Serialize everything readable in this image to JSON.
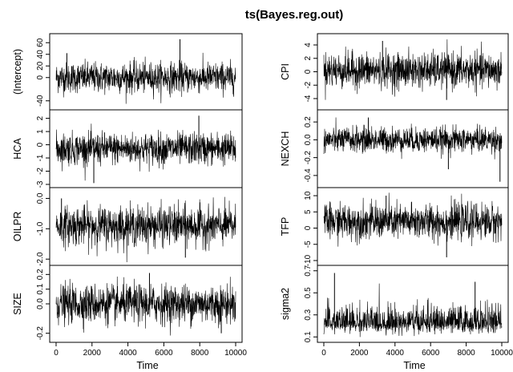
{
  "chart_data": {
    "type": "line",
    "title": "ts(Bayes.reg.out)",
    "xlabel": "Time",
    "x_range": [
      1,
      10000
    ],
    "x_ticks": [
      0,
      2000,
      4000,
      6000,
      8000,
      10000
    ],
    "x_tick_labels": [
      "0",
      "2000",
      "4000",
      "6000",
      "8000",
      "10000"
    ],
    "series": [
      {
        "name": "(Intercept)",
        "column": 0,
        "ylim": [
          -50,
          70
        ],
        "y_ticks": [
          -40,
          0,
          20,
          40,
          60
        ],
        "y_tick_labels": [
          "-40",
          "0",
          "20",
          "40",
          "60"
        ],
        "mean": 0,
        "sd": 13,
        "spikes": [
          {
            "x": 6900,
            "y": 66
          },
          {
            "x": 600,
            "y": 42
          }
        ],
        "values": "trace plot of 10000 MCMC draws, fluctuating around 0, mostly between -40 and 40"
      },
      {
        "name": "HCA",
        "column": 0,
        "ylim": [
          -3,
          2.4
        ],
        "y_ticks": [
          -3,
          -2,
          -1,
          0,
          1,
          2
        ],
        "y_tick_labels": [
          "-3",
          "-2",
          "-1",
          "0",
          "1",
          "2"
        ],
        "mean": -0.3,
        "sd": 0.6,
        "spikes": [
          {
            "x": 7950,
            "y": 2.2
          },
          {
            "x": 2100,
            "y": -2.9
          }
        ],
        "values": "trace plot of 10000 MCMC draws, fluctuating around -0.3, mostly between -2.5 and 1.5"
      },
      {
        "name": "OILPR",
        "column": 0,
        "ylim": [
          -2.1,
          0.25
        ],
        "y_ticks": [
          -2.0,
          -1.0,
          0.0
        ],
        "y_tick_labels": [
          "-2.0",
          "-1.0",
          "0.0"
        ],
        "mean": -0.9,
        "sd": 0.32,
        "spikes": [
          {
            "x": 7200,
            "y": -1.95
          },
          {
            "x": 300,
            "y": 0.0
          }
        ],
        "values": "trace plot of 10000 MCMC draws, fluctuating around -0.9, mostly between -1.8 and 0.0"
      },
      {
        "name": "SIZE",
        "column": 0,
        "ylim": [
          -0.24,
          0.24
        ],
        "y_ticks": [
          -0.2,
          0.0,
          0.1,
          0.2
        ],
        "y_tick_labels": [
          "-0.2",
          "0.0",
          "0.1",
          "0.2"
        ],
        "mean": 0,
        "sd": 0.065,
        "spikes": [
          {
            "x": 5200,
            "y": 0.21
          },
          {
            "x": 9200,
            "y": -0.2
          }
        ],
        "values": "trace plot of 10000 MCMC draws, fluctuating around 0, mostly between -0.2 and 0.2"
      },
      {
        "name": "CPI",
        "column": 1,
        "ylim": [
          -5.2,
          5.2
        ],
        "y_ticks": [
          -4,
          -2,
          0,
          2,
          4
        ],
        "y_tick_labels": [
          "-4",
          "-2",
          "0",
          "2",
          "4"
        ],
        "mean": 0.2,
        "sd": 1.3,
        "spikes": [
          {
            "x": 3300,
            "y": 4.6
          },
          {
            "x": 6900,
            "y": -4.2
          }
        ],
        "values": "trace plot of 10000 MCMC draws, fluctuating around 0.2, mostly between -3.5 and 3.5"
      },
      {
        "name": "NEXCH",
        "column": 1,
        "ylim": [
          -0.5,
          0.3
        ],
        "y_ticks": [
          -0.4,
          -0.2,
          0.0,
          0.2
        ],
        "y_tick_labels": [
          "-0.4",
          "-0.2",
          "0.0",
          "0.2"
        ],
        "mean": 0,
        "sd": 0.07,
        "spikes": [
          {
            "x": 9900,
            "y": -0.47
          },
          {
            "x": 7000,
            "y": -0.33
          },
          {
            "x": 2500,
            "y": 0.25
          }
        ],
        "values": "trace plot of 10000 MCMC draws, fluctuating around 0, mostly between -0.2 and 0.2"
      },
      {
        "name": "TFP",
        "column": 1,
        "ylim": [
          -10.5,
          11.5
        ],
        "y_ticks": [
          -10,
          -5,
          0,
          5,
          10
        ],
        "y_tick_labels": [
          "-10",
          "-5",
          "0",
          "5",
          "10"
        ],
        "mean": 2,
        "sd": 2.7,
        "spikes": [
          {
            "x": 6900,
            "y": -9
          },
          {
            "x": 3500,
            "y": 10
          }
        ],
        "values": "trace plot of 10000 MCMC draws, fluctuating around 2, mostly between -5 and 9"
      },
      {
        "name": "sigma2",
        "column": 1,
        "ylim": [
          0.08,
          0.72
        ],
        "y_ticks": [
          0.1,
          0.3,
          0.5,
          0.7
        ],
        "y_tick_labels": [
          "0.1",
          "0.3",
          "0.5",
          "0.7"
        ],
        "mean": 0.22,
        "sd": 0.05,
        "skew": true,
        "spikes": [
          {
            "x": 600,
            "y": 0.68
          },
          {
            "x": 8500,
            "y": 0.6
          }
        ],
        "values": "right-skewed trace plot of 10000 MCMC draws, mostly between 0.12 and 0.45"
      }
    ]
  }
}
